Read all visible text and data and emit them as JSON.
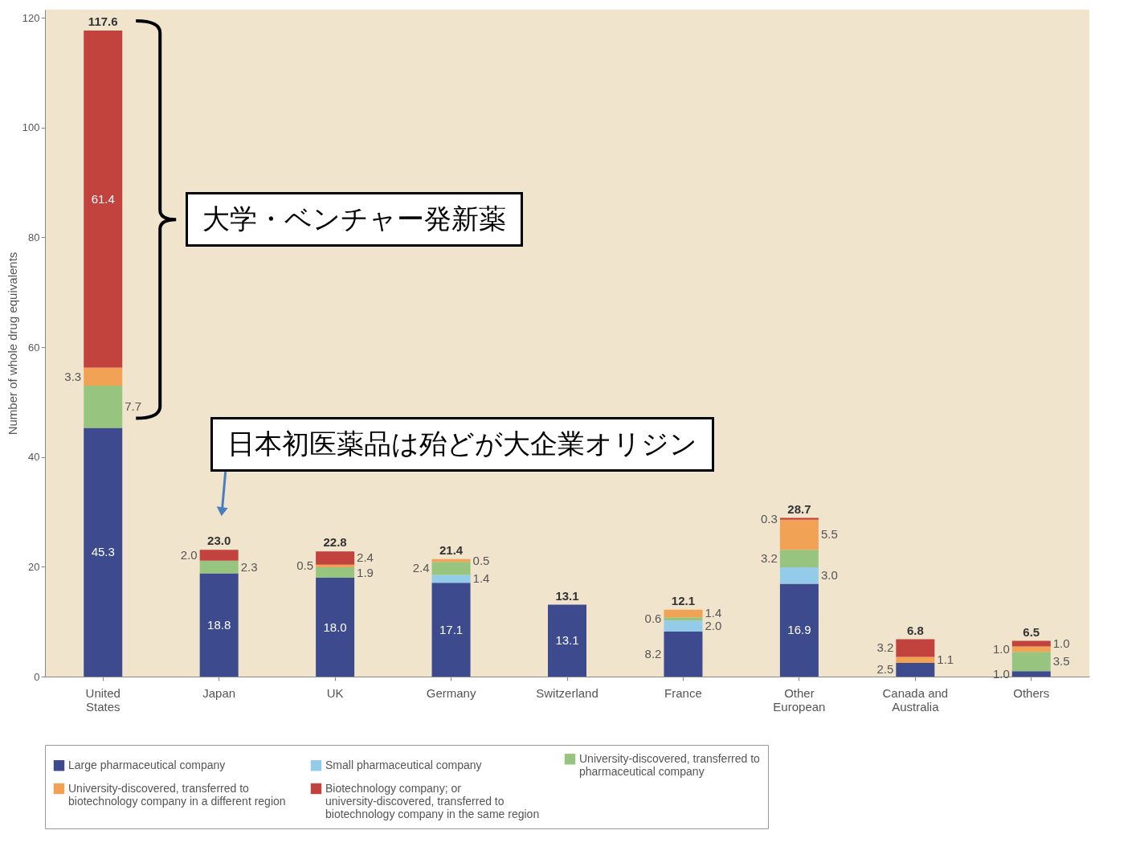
{
  "chart_data": {
    "type": "bar",
    "stacked": true,
    "ylabel": "Number of whole drug equivalents",
    "categories": [
      "United States",
      "Japan",
      "UK",
      "Germany",
      "Switzerland",
      "France",
      "Other European",
      "Canada and Australia",
      "Others"
    ],
    "series": [
      {
        "name": "Large pharmaceutical company",
        "color": "#3d4b8e",
        "values": [
          45.3,
          18.8,
          18.0,
          17.1,
          13.1,
          8.2,
          16.9,
          2.5,
          1.0
        ],
        "value_labels": [
          "45.3",
          "18.8",
          "18.0",
          "17.1",
          "13.1",
          "8.2",
          "16.9",
          "2.5",
          "1.0"
        ]
      },
      {
        "name": "Small pharmaceutical company",
        "color": "#93cbe9",
        "values": [
          null,
          null,
          null,
          1.4,
          null,
          2.0,
          3.0,
          null,
          null
        ],
        "value_labels": [
          null,
          null,
          null,
          "1.4",
          null,
          "2.0",
          "3.0",
          null,
          null
        ]
      },
      {
        "name": "University-discovered, transferred to pharmaceutical company",
        "color": "#97c57f",
        "values": [
          7.7,
          2.3,
          1.9,
          2.4,
          null,
          0.6,
          3.2,
          null,
          3.5
        ],
        "value_labels": [
          "7.7",
          "2.3",
          "1.9",
          "2.4",
          null,
          "0.6",
          "3.2",
          null,
          "3.5"
        ]
      },
      {
        "name": "University-discovered, transferred to biotechnology company in a different region",
        "color": "#f2a254",
        "values": [
          3.3,
          null,
          0.5,
          0.5,
          null,
          1.4,
          5.5,
          1.1,
          1.0
        ],
        "value_labels": [
          "3.3",
          null,
          "0.5",
          "0.5",
          null,
          "1.4",
          "5.5",
          "1.1",
          "1.0"
        ]
      },
      {
        "name": "Biotechnology company; or university-discovered, transferred to biotechnology company in the same region",
        "color": "#c2423e",
        "values": [
          61.4,
          2.0,
          2.4,
          null,
          null,
          null,
          0.3,
          3.2,
          1.0
        ],
        "value_labels": [
          "61.4",
          "2.0",
          "2.4",
          null,
          null,
          null,
          "0.3",
          "3.2",
          "1.0"
        ]
      }
    ],
    "totals": [
      "117.6",
      "23.0",
      "22.8",
      "21.4",
      "13.1",
      "12.1",
      "28.7",
      "6.8",
      "6.5"
    ],
    "ylim": [
      0,
      121.5
    ],
    "yticks": [
      0,
      20,
      40,
      60,
      80,
      100,
      120
    ],
    "legend": "bottom",
    "annotations": [
      "大学・ベンチャー発新薬",
      "日本初医薬品は殆どが大企業オリジン"
    ]
  }
}
